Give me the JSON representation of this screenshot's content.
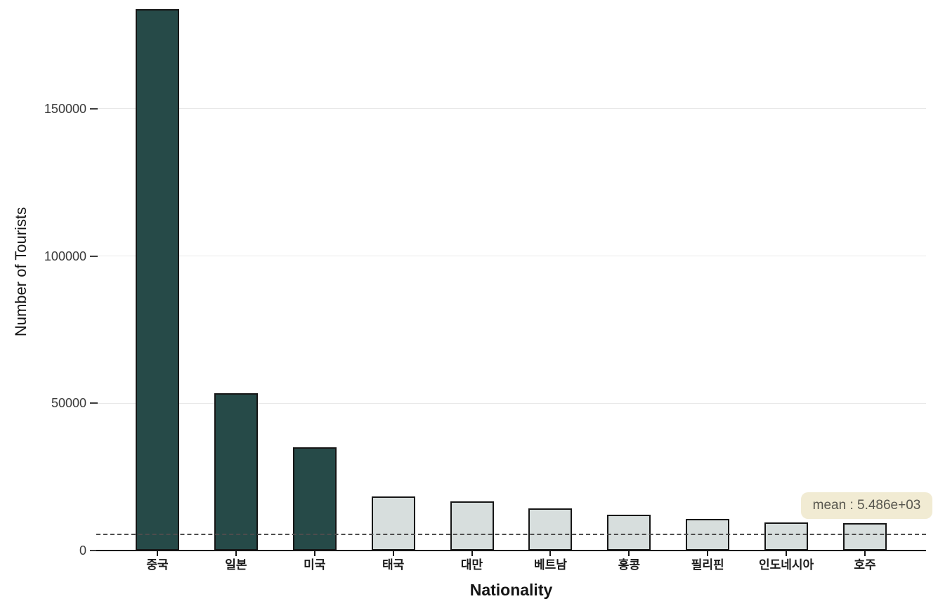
{
  "chart_data": {
    "type": "bar",
    "title": "",
    "xlabel": "Nationality",
    "ylabel": "Number of Tourists",
    "categories": [
      "중국",
      "일본",
      "미국",
      "태국",
      "대만",
      "베트남",
      "홍콩",
      "필리핀",
      "인도네시아",
      "호주"
    ],
    "values": [
      183700,
      53400,
      35000,
      18400,
      16700,
      14200,
      12200,
      10700,
      9500,
      9300
    ],
    "bar_colors": [
      "#264a48",
      "#264a48",
      "#264a48",
      "#d7dedd",
      "#d7dedd",
      "#d7dedd",
      "#d7dedd",
      "#d7dedd",
      "#d7dedd",
      "#d7dedd"
    ],
    "bar_edge_color": "#161616",
    "yticks": [
      0,
      50000,
      100000,
      150000
    ],
    "ytick_labels": [
      "0",
      "50000",
      "100000",
      "150000"
    ],
    "ylim": [
      0,
      186900
    ],
    "grid": "horizontal-only",
    "legend": "none",
    "mean_line": {
      "value": 5486,
      "style": "dashed",
      "color": "#4d4d4d",
      "label": "mean : 5.486e+03"
    },
    "annotation": {
      "text": "mean : 5.486e+03",
      "background": "#f1ebd3",
      "text_color": "#57564e"
    },
    "colors": {
      "dark_bar": "#264a48",
      "light_bar": "#d7dedd",
      "gridline": "#e8e8e8",
      "axis": "#151515",
      "tick_label": "#3d3d3d"
    }
  }
}
